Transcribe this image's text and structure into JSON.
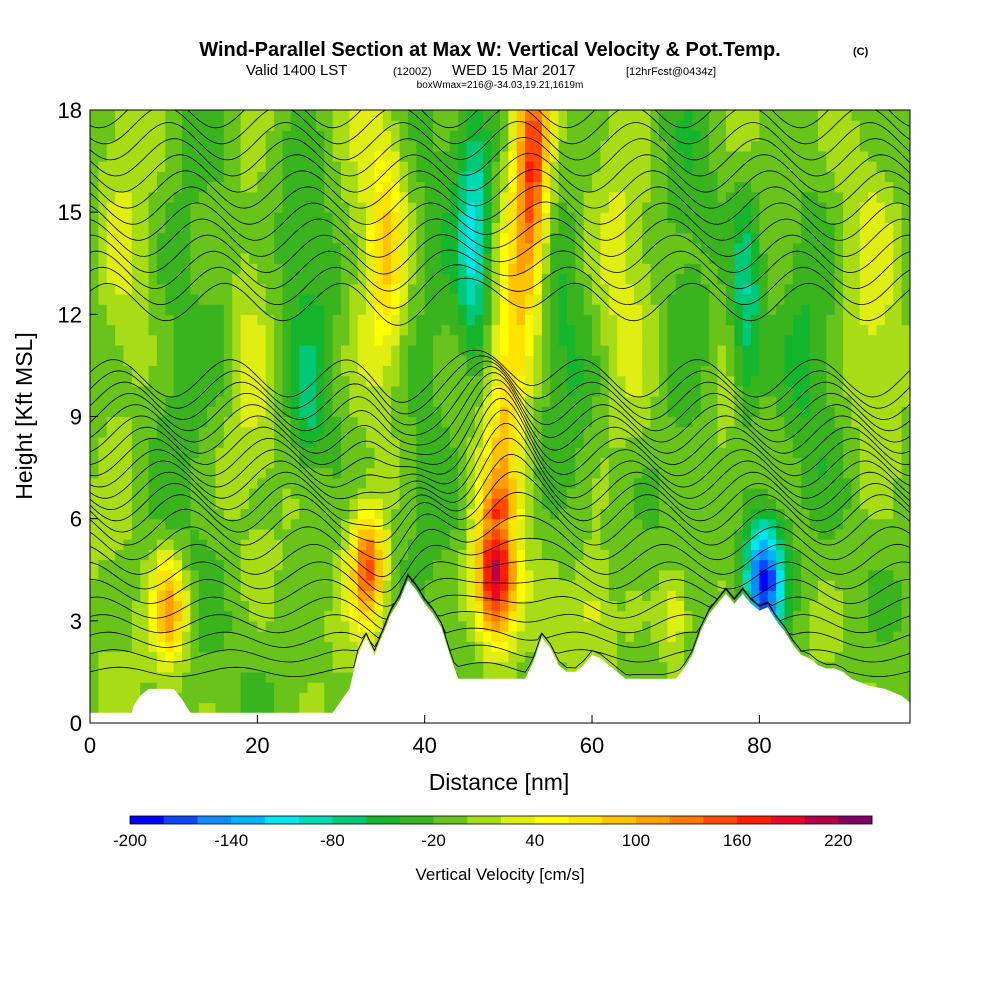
{
  "header": {
    "title": "Wind-Parallel Section at Max W: Vertical Velocity & Pot.Temp.",
    "copyright_mark": "(C)",
    "valid_prefix": "Valid 1400 LST",
    "valid_utc": "(1200Z)",
    "valid_date": "WED 15 Mar 2017",
    "forecast_info": "[12hrFcst@0434z]",
    "box_info": "boxWmax=216@-34.03,19.21,1619m"
  },
  "chart_data": {
    "type": "heatmap",
    "title": "Wind-Parallel Section at Max W: Vertical Velocity & Pot.Temp.",
    "xlabel": "Distance [nm]",
    "ylabel": "Height [Kft MSL]",
    "xlim": [
      0,
      98
    ],
    "ylim": [
      0,
      18
    ],
    "x_ticks": [
      0,
      20,
      40,
      60,
      80
    ],
    "y_ticks": [
      0,
      3,
      6,
      9,
      12,
      15,
      18
    ],
    "x_tick_labels": [
      "0",
      "20",
      "40",
      "60",
      "80"
    ],
    "y_tick_labels": [
      "0",
      "3",
      "6",
      "9",
      "12",
      "15",
      "18"
    ],
    "grid": false,
    "colorbar": {
      "label": "Vertical Velocity [cm/s]",
      "min": -200,
      "max": 240,
      "step": 20,
      "tick_values": [
        -200,
        -140,
        -80,
        -20,
        40,
        100,
        160,
        220
      ],
      "tick_labels": [
        "-200",
        "-140",
        "-80",
        "-20",
        "40",
        "100",
        "160",
        "220"
      ],
      "colors": [
        "#0000ff",
        "#0a46ff",
        "#0a8cff",
        "#00b4ff",
        "#00e6ee",
        "#00d8b4",
        "#00c878",
        "#15b62d",
        "#3ab41e",
        "#68c31a",
        "#a8dc16",
        "#e0ee14",
        "#ffff00",
        "#ffe400",
        "#ffc300",
        "#ffa000",
        "#ff7800",
        "#ff4a00",
        "#ff1e00",
        "#e60a28",
        "#b40046",
        "#800064"
      ]
    },
    "vertical_velocity_features": [
      {
        "x": 48.5,
        "height": 4.3,
        "peak_w": 216,
        "note": "max updraft"
      },
      {
        "x": 33.2,
        "height": 4.6,
        "peak_w": 150
      },
      {
        "x": 9.5,
        "height": 3.4,
        "peak_w": 120
      },
      {
        "x": 53,
        "height": 15.5,
        "peak_w": 110
      },
      {
        "x": 35.5,
        "height": 14,
        "peak_w": 60
      },
      {
        "x": 70,
        "height": 3.2,
        "peak_w": 60
      },
      {
        "x": 60,
        "height": 3.5,
        "peak_w": 40
      },
      {
        "x": 80.5,
        "height": 4.2,
        "peak_w": -190,
        "note": "strongest downdraft"
      },
      {
        "x": 78.5,
        "height": 12,
        "peak_w": -90
      },
      {
        "x": 46,
        "height": 14,
        "peak_w": -110
      },
      {
        "x": 26,
        "height": 9,
        "peak_w": -30
      },
      {
        "x": 16,
        "height": 12,
        "peak_w": -30
      }
    ],
    "terrain": {
      "distance": [
        0,
        5,
        5.2,
        6,
        7,
        8,
        10,
        11,
        12,
        13,
        20,
        25,
        29,
        31,
        32,
        33,
        34,
        35,
        36,
        37,
        38,
        39,
        40,
        41,
        42,
        43,
        44,
        45,
        46,
        47,
        52,
        53,
        54,
        55,
        56,
        57,
        58,
        59,
        60,
        61,
        62,
        63,
        64,
        65,
        70,
        71,
        72,
        73,
        74,
        75,
        76,
        77,
        78,
        79,
        80,
        81,
        82,
        83,
        84,
        85,
        86,
        87,
        88,
        89,
        90,
        91,
        92,
        93,
        95,
        97,
        98
      ],
      "height": [
        0.3,
        0.3,
        0.5,
        0.8,
        1.0,
        1.0,
        1.0,
        0.7,
        0.3,
        0.3,
        0.3,
        0.3,
        0.3,
        1.0,
        2.0,
        2.5,
        2.0,
        2.6,
        3.2,
        3.6,
        4.2,
        3.9,
        3.5,
        3.2,
        2.8,
        2.0,
        1.3,
        1.3,
        1.3,
        1.3,
        1.3,
        1.8,
        2.5,
        2.2,
        1.7,
        1.5,
        1.5,
        1.7,
        2.0,
        1.9,
        1.7,
        1.5,
        1.3,
        1.3,
        1.3,
        1.6,
        2.0,
        2.7,
        3.2,
        3.5,
        3.8,
        3.5,
        3.8,
        3.5,
        3.3,
        3.4,
        3.0,
        2.7,
        2.3,
        2.0,
        1.9,
        1.7,
        1.6,
        1.6,
        1.5,
        1.3,
        1.2,
        1.1,
        1.0,
        0.8,
        0.6
      ]
    },
    "isentropes": {
      "label": "Pot.Temp.",
      "count": 36,
      "min_spacing_height": 1.5,
      "tight_gradient_band": [
        6,
        9
      ]
    }
  }
}
